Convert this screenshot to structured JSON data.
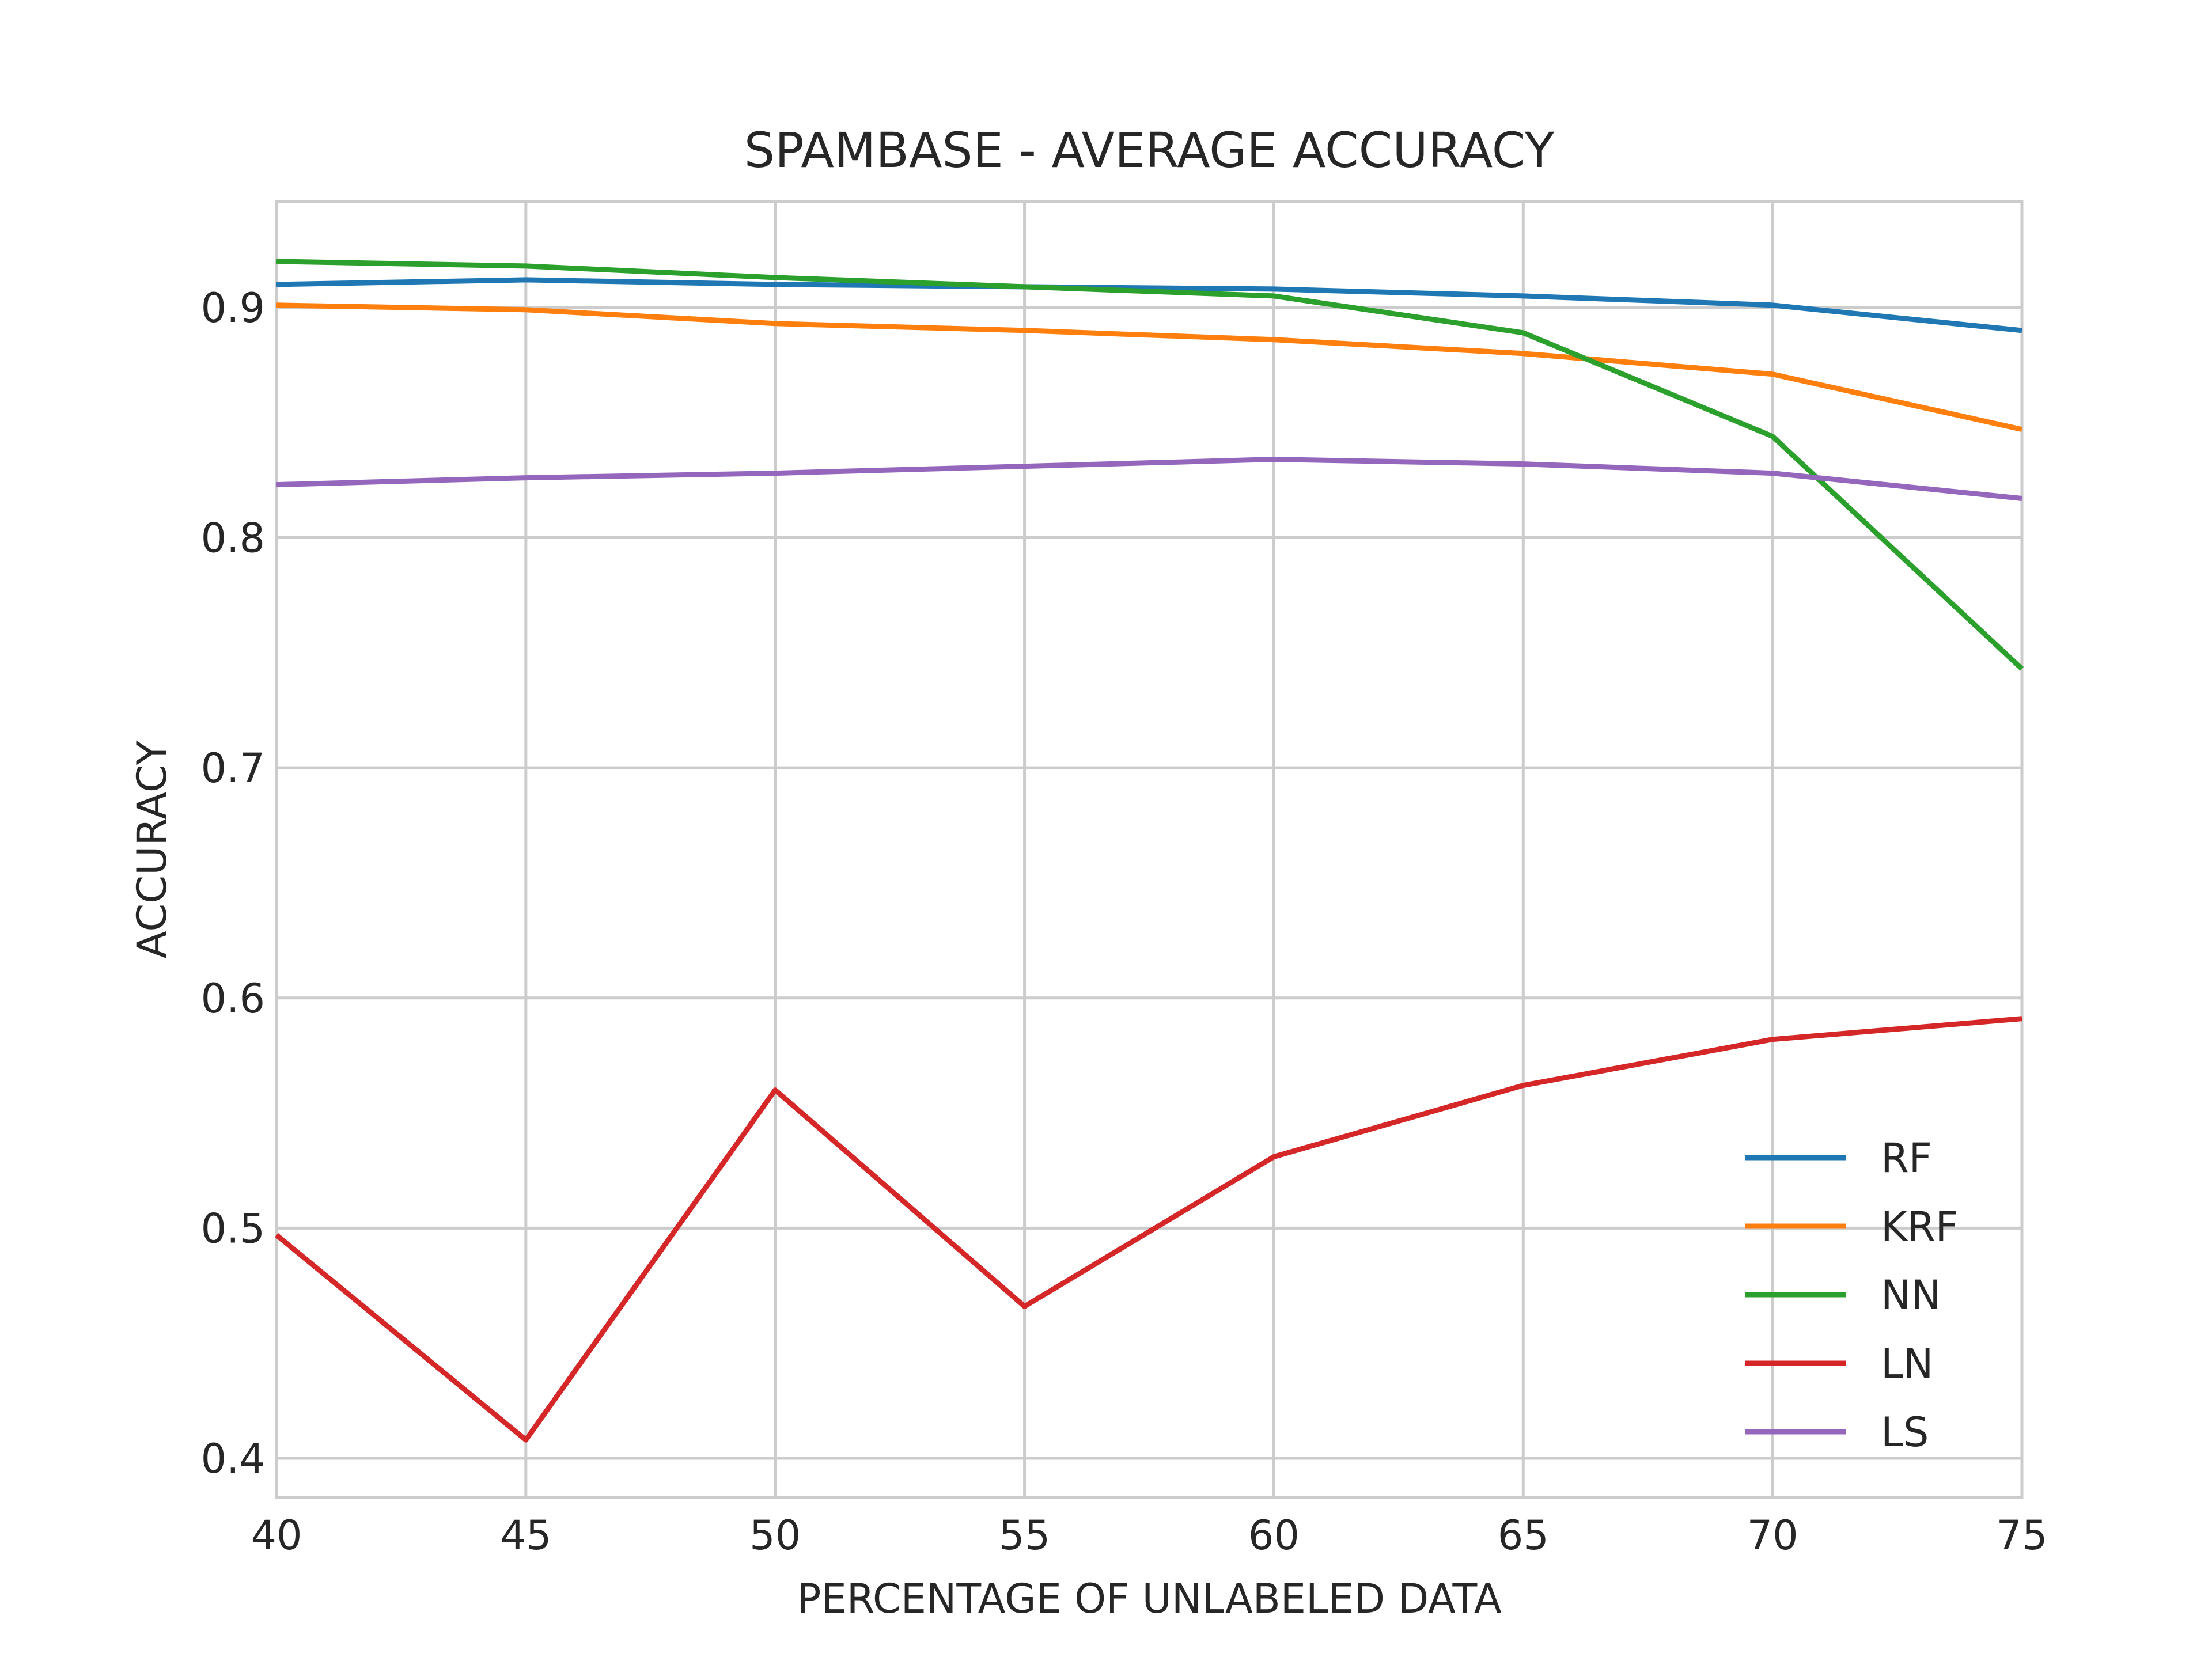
{
  "chart_data": {
    "type": "line",
    "title": "SPAMBASE - AVERAGE ACCURACY",
    "xlabel": "PERCENTAGE OF UNLABELED DATA",
    "ylabel": "ACCURACY",
    "x": [
      40,
      45,
      50,
      55,
      60,
      65,
      70,
      75
    ],
    "xlim": [
      40,
      75
    ],
    "ylim": [
      0.383,
      0.946
    ],
    "xticks": [
      40,
      45,
      50,
      55,
      60,
      65,
      70,
      75
    ],
    "yticks": [
      0.4,
      0.5,
      0.6,
      0.7,
      0.8,
      0.9
    ],
    "ytick_labels": [
      "0.4",
      "0.5",
      "0.6",
      "0.7",
      "0.8",
      "0.9"
    ],
    "grid": true,
    "legend_position": "lower-right",
    "series": [
      {
        "name": "RF",
        "color": "#1f77b4",
        "values": [
          0.91,
          0.912,
          0.91,
          0.909,
          0.908,
          0.905,
          0.901,
          0.89
        ]
      },
      {
        "name": "KRF",
        "color": "#ff7f0e",
        "values": [
          0.901,
          0.899,
          0.893,
          0.89,
          0.886,
          0.88,
          0.871,
          0.847
        ]
      },
      {
        "name": "NN",
        "color": "#2ca02c",
        "values": [
          0.92,
          0.918,
          0.913,
          0.909,
          0.905,
          0.889,
          0.844,
          0.743
        ]
      },
      {
        "name": "LN",
        "color": "#d62728",
        "values": [
          0.497,
          0.408,
          0.56,
          0.466,
          0.531,
          0.562,
          0.582,
          0.591
        ]
      },
      {
        "name": "LS",
        "color": "#9467bd",
        "values": [
          0.823,
          0.826,
          0.828,
          0.831,
          0.834,
          0.832,
          0.828,
          0.817
        ]
      }
    ]
  }
}
